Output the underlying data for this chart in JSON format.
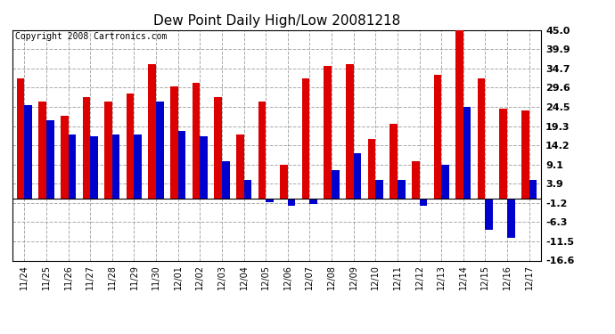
{
  "title": "Dew Point Daily High/Low 20081218",
  "copyright": "Copyright 2008 Cartronics.com",
  "dates": [
    "11/24",
    "11/25",
    "11/26",
    "11/27",
    "11/28",
    "11/29",
    "11/30",
    "12/01",
    "12/02",
    "12/03",
    "12/04",
    "12/05",
    "12/06",
    "12/07",
    "12/08",
    "12/09",
    "12/10",
    "12/11",
    "12/12",
    "12/13",
    "12/14",
    "12/15",
    "12/16",
    "12/17"
  ],
  "high": [
    32.0,
    26.0,
    22.0,
    27.0,
    26.0,
    28.0,
    36.0,
    30.0,
    31.0,
    27.0,
    17.0,
    26.0,
    9.0,
    32.0,
    35.5,
    36.0,
    16.0,
    20.0,
    10.0,
    33.0,
    45.0,
    32.0,
    24.0,
    23.5
  ],
  "low": [
    25.0,
    21.0,
    17.0,
    16.5,
    17.0,
    17.0,
    26.0,
    18.0,
    16.5,
    10.0,
    5.0,
    -1.0,
    -2.0,
    -1.5,
    7.5,
    12.0,
    5.0,
    5.0,
    -2.0,
    9.0,
    24.5,
    -8.5,
    -10.5,
    5.0
  ],
  "ylim": [
    -16.6,
    45.0
  ],
  "yticks": [
    45.0,
    39.9,
    34.7,
    29.6,
    24.5,
    19.3,
    14.2,
    9.1,
    3.9,
    -1.2,
    -6.3,
    -11.5,
    -16.6
  ],
  "bar_width": 0.35,
  "high_color": "#dd0000",
  "low_color": "#0000cc",
  "bg_color": "#ffffff",
  "plot_bg_color": "#ffffff",
  "grid_color": "#aaaaaa",
  "title_fontsize": 11,
  "copyright_fontsize": 7
}
